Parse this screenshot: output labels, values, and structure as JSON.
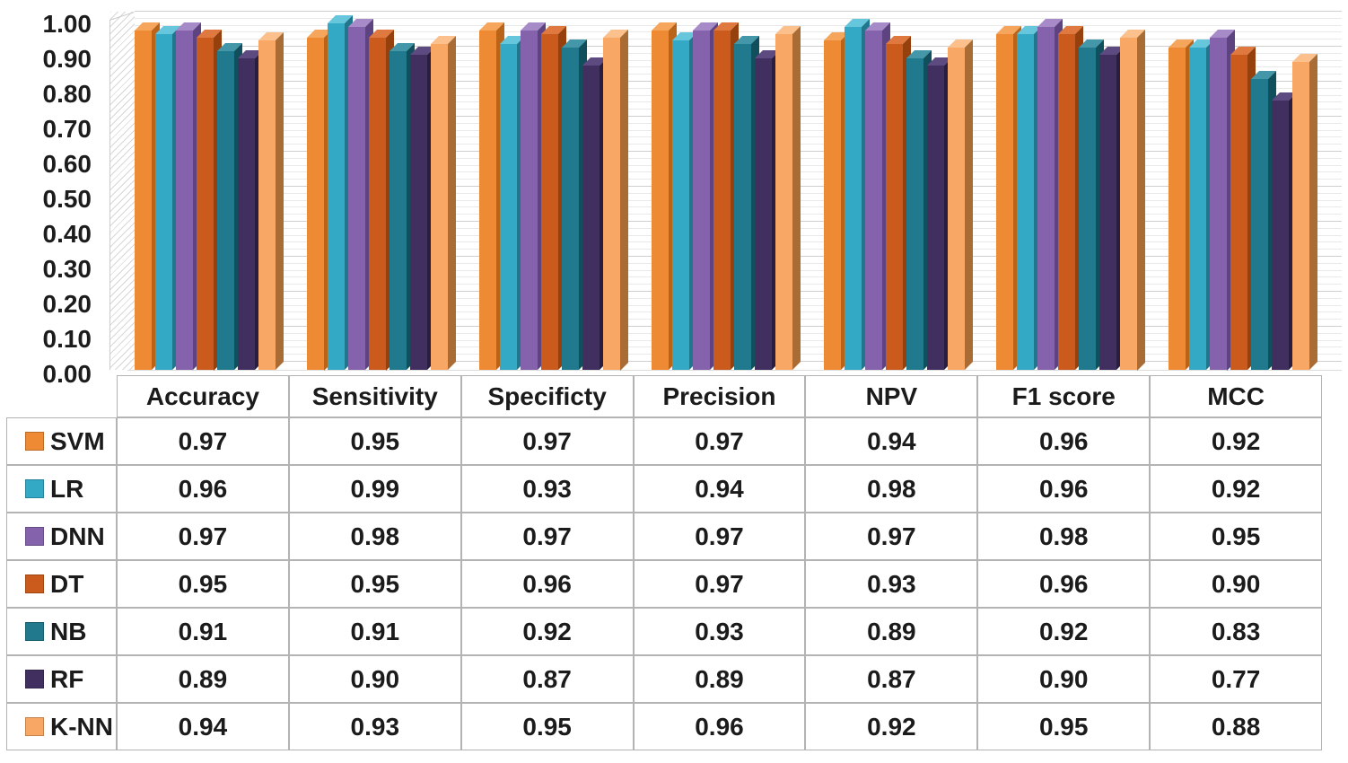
{
  "chart_data": {
    "type": "bar",
    "style": "3d-clustered-column",
    "title": "",
    "xlabel": "",
    "ylabel": "",
    "ylim": [
      0,
      1
    ],
    "ytick_step": 0.1,
    "minor_gridline_step": 0.02,
    "grid": true,
    "legend_position": "table-row-labels",
    "ytick_labels": [
      "1.00",
      "0.90",
      "0.80",
      "0.70",
      "0.60",
      "0.50",
      "0.40",
      "0.30",
      "0.20",
      "0.10",
      "0.00"
    ],
    "categories": [
      "Accuracy",
      "Sensitivity",
      "Specificty",
      "Precision",
      "NPV",
      "F1 score",
      "MCC"
    ],
    "series": [
      {
        "name": "SVM",
        "color": "#EE8A33",
        "color_top": "#F6A65C",
        "color_side": "#B96418",
        "values": [
          0.97,
          0.95,
          0.97,
          0.97,
          0.94,
          0.96,
          0.92
        ]
      },
      {
        "name": "LR",
        "color": "#34A9C6",
        "color_top": "#66C6DC",
        "color_side": "#20768D",
        "values": [
          0.96,
          0.99,
          0.93,
          0.94,
          0.98,
          0.96,
          0.92
        ]
      },
      {
        "name": "DNN",
        "color": "#8463AC",
        "color_top": "#A78BC8",
        "color_side": "#5D4380",
        "values": [
          0.97,
          0.98,
          0.97,
          0.97,
          0.97,
          0.98,
          0.95
        ]
      },
      {
        "name": "DT",
        "color": "#CB5A1D",
        "color_top": "#E0793F",
        "color_side": "#96400E",
        "values": [
          0.95,
          0.95,
          0.96,
          0.97,
          0.93,
          0.96,
          0.9
        ]
      },
      {
        "name": "NB",
        "color": "#20798C",
        "color_top": "#4497A8",
        "color_side": "#124F5C",
        "values": [
          0.91,
          0.91,
          0.92,
          0.93,
          0.89,
          0.92,
          0.83
        ]
      },
      {
        "name": "RF",
        "color": "#41305F",
        "color_top": "#5C4A80",
        "color_side": "#291D41",
        "values": [
          0.89,
          0.9,
          0.87,
          0.89,
          0.87,
          0.9,
          0.77
        ]
      },
      {
        "name": "K-NN",
        "color": "#F8A765",
        "color_top": "#FBC08C",
        "color_side": "#A96C34",
        "values": [
          0.94,
          0.93,
          0.95,
          0.96,
          0.92,
          0.95,
          0.88
        ]
      }
    ]
  },
  "table": {
    "corner_label": "",
    "headers": [
      "Accuracy",
      "Sensitivity",
      "Specificty",
      "Precision",
      "NPV",
      "F1 score",
      "MCC"
    ],
    "rows": [
      {
        "label": "SVM",
        "values": [
          "0.97",
          "0.95",
          "0.97",
          "0.97",
          "0.94",
          "0.96",
          "0.92"
        ]
      },
      {
        "label": "LR",
        "values": [
          "0.96",
          "0.99",
          "0.93",
          "0.94",
          "0.98",
          "0.96",
          "0.92"
        ]
      },
      {
        "label": "DNN",
        "values": [
          "0.97",
          "0.98",
          "0.97",
          "0.97",
          "0.97",
          "0.98",
          "0.95"
        ]
      },
      {
        "label": "DT",
        "values": [
          "0.95",
          "0.95",
          "0.96",
          "0.97",
          "0.93",
          "0.96",
          "0.90"
        ]
      },
      {
        "label": "NB",
        "values": [
          "0.91",
          "0.91",
          "0.92",
          "0.93",
          "0.89",
          "0.92",
          "0.83"
        ]
      },
      {
        "label": "RF",
        "values": [
          "0.89",
          "0.90",
          "0.87",
          "0.89",
          "0.87",
          "0.90",
          "0.77"
        ]
      },
      {
        "label": "K-NN",
        "values": [
          "0.94",
          "0.93",
          "0.95",
          "0.96",
          "0.92",
          "0.95",
          "0.88"
        ]
      }
    ]
  },
  "colors": {
    "background": "#ffffff",
    "major_gridline": "#cfcfcf",
    "minor_gridline": "#e9e9e9",
    "table_border": "#b3b3b3",
    "text": "#1b1b1b"
  }
}
